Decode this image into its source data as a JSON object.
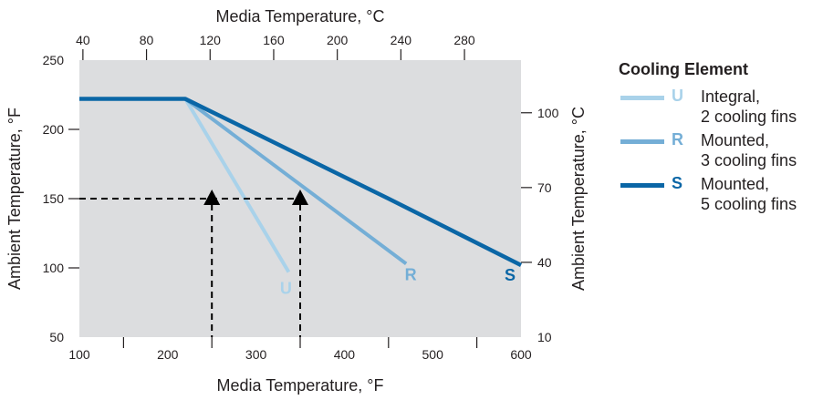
{
  "chart_data": {
    "type": "line",
    "x": {
      "label": "Media Temperature, °F",
      "range": [
        100,
        600
      ],
      "ticks": [
        100,
        200,
        300,
        400,
        500,
        600
      ],
      "minor_ticks": [
        150,
        250,
        350,
        450,
        550
      ]
    },
    "x_top": {
      "label": "Media Temperature, °C",
      "ticks": [
        40,
        80,
        120,
        160,
        200,
        240,
        280
      ]
    },
    "y": {
      "label": "Ambient Temperature, °F",
      "range": [
        50,
        250
      ],
      "ticks": [
        50,
        100,
        150,
        200,
        250
      ]
    },
    "y_right": {
      "label": "Ambient Temperature, °C",
      "ticks": [
        10,
        40,
        70,
        100
      ]
    },
    "series": [
      {
        "name": "U",
        "color": "#a9d2ea",
        "points": [
          [
            220,
            222
          ],
          [
            337,
            97
          ]
        ]
      },
      {
        "name": "R",
        "color": "#74aed6",
        "points": [
          [
            220,
            222
          ],
          [
            470,
            103
          ]
        ]
      },
      {
        "name": "S",
        "color": "#0a66a6",
        "points": [
          [
            100,
            222
          ],
          [
            220,
            222
          ],
          [
            450,
            150
          ],
          [
            600,
            102
          ]
        ]
      }
    ],
    "annotations": {
      "reference_y": 150,
      "markers": [
        {
          "x": 250,
          "y": 150
        },
        {
          "x": 350,
          "y": 150
        }
      ]
    },
    "legend": {
      "title": "Cooling Element",
      "position": "right",
      "items": [
        {
          "letter": "U",
          "line1": "Integral,",
          "line2": "2 cooling fins",
          "color": "#a9d2ea"
        },
        {
          "letter": "R",
          "line1": "Mounted,",
          "line2": "3 cooling fins",
          "color": "#74aed6"
        },
        {
          "letter": "S",
          "line1": "Mounted,",
          "line2": "5 cooling fins",
          "color": "#0a66a6"
        }
      ]
    },
    "plot_background": "#dcdddf",
    "grid": false
  }
}
